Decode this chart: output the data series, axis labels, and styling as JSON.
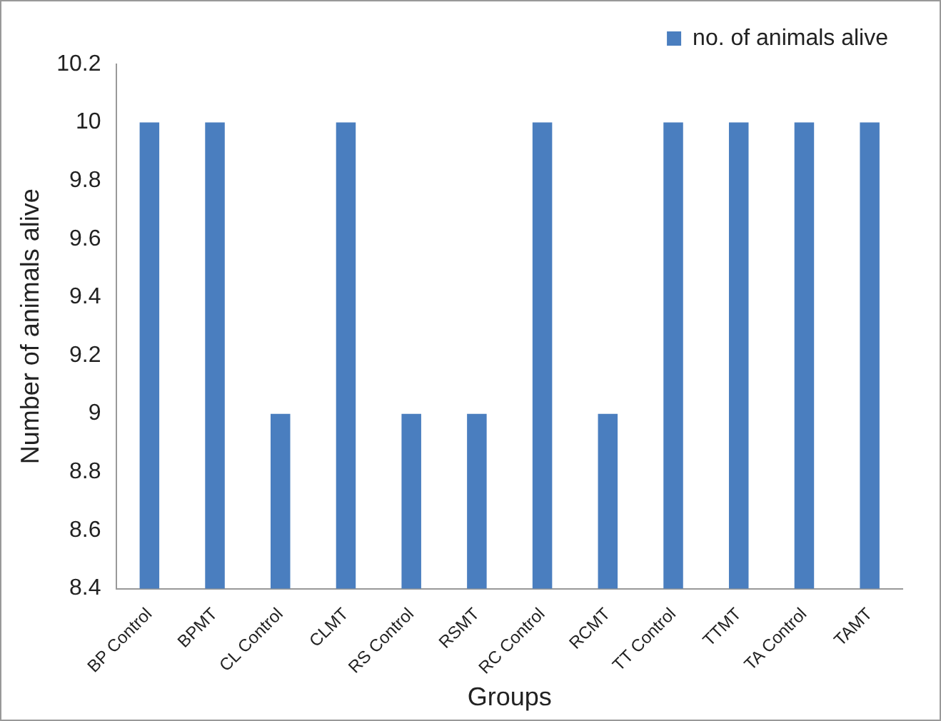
{
  "chart_data": {
    "type": "bar",
    "xlabel": "Groups",
    "ylabel": "Number of animals alive",
    "categories": [
      "BP Control",
      "BPMT",
      "CL Control",
      "CLMT",
      "RS Control",
      "RSMT",
      "RC Control",
      "RCMT",
      "TT Control",
      "TTMT",
      "TA Control",
      "TAMT"
    ],
    "series": [
      {
        "name": "no. of animals alive",
        "color": "#4a7ebf",
        "values": [
          10,
          10,
          9,
          10,
          9,
          9,
          10,
          9,
          10,
          10,
          10,
          10
        ]
      }
    ],
    "ylim": [
      8.4,
      10.2
    ],
    "yticks": [
      8.4,
      8.6,
      8.8,
      9,
      9.2,
      9.4,
      9.6,
      9.8,
      10,
      10.2
    ],
    "grid": false,
    "legend": "top right"
  }
}
